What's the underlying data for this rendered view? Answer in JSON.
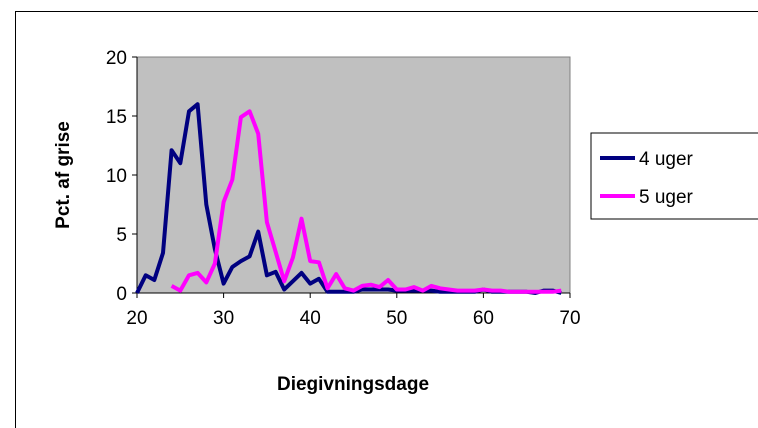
{
  "chart_data": {
    "type": "line",
    "title": "",
    "xlabel": "Diegivningsdage",
    "ylabel": "Pct. af grise",
    "xlim": [
      20,
      70
    ],
    "ylim": [
      0,
      20
    ],
    "xticks": [
      20,
      30,
      40,
      50,
      60,
      70
    ],
    "yticks": [
      0,
      5,
      10,
      15,
      20
    ],
    "grid": false,
    "legend_position": "right",
    "plot_background": "#c0c0c0",
    "series": [
      {
        "name": "4 uger",
        "color": "#000080",
        "x": [
          20,
          21,
          22,
          23,
          24,
          25,
          26,
          27,
          28,
          29,
          30,
          31,
          32,
          33,
          34,
          35,
          36,
          37,
          38,
          39,
          40,
          41,
          42,
          43,
          44,
          45,
          46,
          47,
          48,
          49,
          50,
          51,
          52,
          53,
          54,
          55,
          56,
          57,
          58,
          59,
          60,
          61,
          62,
          63,
          64,
          65,
          66,
          67,
          68,
          69
        ],
        "y": [
          0,
          1.5,
          1.1,
          3.4,
          12.1,
          11.0,
          15.4,
          16.0,
          7.5,
          3.7,
          0.8,
          2.2,
          2.7,
          3.1,
          5.2,
          1.5,
          1.8,
          0.3,
          1.0,
          1.7,
          0.8,
          1.2,
          0.1,
          0.1,
          0.1,
          0.1,
          0.3,
          0.3,
          0.3,
          0.3,
          0.2,
          0.2,
          0.2,
          0.2,
          0.2,
          0.1,
          0.1,
          0.1,
          0.1,
          0.1,
          0.3,
          0.1,
          0.1,
          0.1,
          0.1,
          0.1,
          0,
          0.2,
          0.2,
          0
        ]
      },
      {
        "name": "5 uger",
        "color": "#ff00ff",
        "x": [
          24,
          25,
          26,
          27,
          28,
          29,
          30,
          31,
          32,
          33,
          34,
          35,
          36,
          37,
          38,
          39,
          40,
          41,
          42,
          43,
          44,
          45,
          46,
          47,
          48,
          49,
          50,
          51,
          52,
          53,
          54,
          55,
          56,
          57,
          58,
          59,
          60,
          61,
          62,
          63,
          64,
          65,
          66,
          67,
          68,
          69
        ],
        "y": [
          0.6,
          0.2,
          1.5,
          1.7,
          0.9,
          2.5,
          7.7,
          9.6,
          14.9,
          15.4,
          13.5,
          6.0,
          3.5,
          1.0,
          3.0,
          6.3,
          2.7,
          2.6,
          0.4,
          1.6,
          0.4,
          0.2,
          0.6,
          0.7,
          0.5,
          1.1,
          0.3,
          0.3,
          0.5,
          0.2,
          0.6,
          0.4,
          0.3,
          0.2,
          0.2,
          0.2,
          0.3,
          0.2,
          0.2,
          0.1,
          0.1,
          0.1,
          0.1,
          0.1,
          0.1,
          0.2
        ]
      }
    ]
  }
}
